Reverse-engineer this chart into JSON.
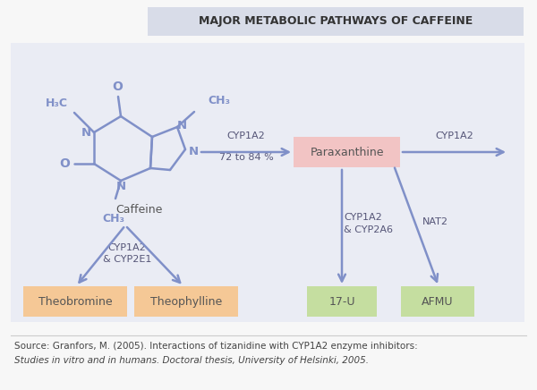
{
  "title": "MAJOR METABOLIC PATHWAYS OF CAFFEINE",
  "title_bg": "#d8dce8",
  "main_bg": "#eaecf4",
  "outer_bg": "#f7f7f7",
  "source_text_1": "Source: Granfors, M. (2005). Interactions of tizanidine with CYP1A2 enzyme inhibitors:",
  "source_text_2": "Studies in vitro and in humans. Doctoral thesis, University of Helsinki, 2005.",
  "caffeine_label": "Caffeine",
  "paraxanthine_label": "Paraxanthine",
  "paraxanthine_bg": "#f2c4c4",
  "theobromine_label": "Theobromine",
  "theobromine_bg": "#f5c896",
  "theophylline_label": "Theophylline",
  "theophylline_bg": "#f5c896",
  "u17_label": "17-U",
  "u17_bg": "#c5dea0",
  "afmu_label": "AFMU",
  "afmu_bg": "#c5dea0",
  "structure_color": "#8090c8",
  "arrow_color": "#8090c8",
  "text_color": "#555577",
  "label_color": "#555555"
}
